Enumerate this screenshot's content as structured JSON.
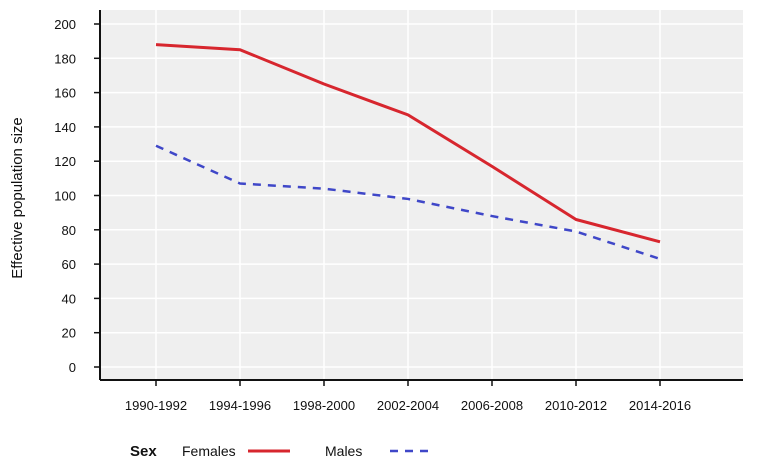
{
  "chart_data": {
    "type": "line",
    "title": "",
    "xlabel": "",
    "ylabel": "Effective population size",
    "categories": [
      "1990-1992",
      "1994-1996",
      "1998-2000",
      "2002-2004",
      "2006-2008",
      "2010-2012",
      "2014-2016"
    ],
    "ylim": [
      0,
      200
    ],
    "yticks": [
      0,
      20,
      40,
      60,
      80,
      100,
      120,
      140,
      160,
      180,
      200
    ],
    "grid": true,
    "legend_position": "bottom-left",
    "legend_title": "Sex",
    "series": [
      {
        "name": "Females",
        "values": [
          188,
          185,
          165,
          147,
          117,
          86,
          73
        ],
        "color": "#d7262e",
        "style": "solid"
      },
      {
        "name": "Males",
        "values": [
          129,
          107,
          104,
          98,
          88,
          79,
          63
        ],
        "color": "#3f47c8",
        "style": "dashed"
      }
    ],
    "colors": {
      "plot_background": "#efefef",
      "grid": "#ffffff",
      "axis": "#111111"
    }
  }
}
